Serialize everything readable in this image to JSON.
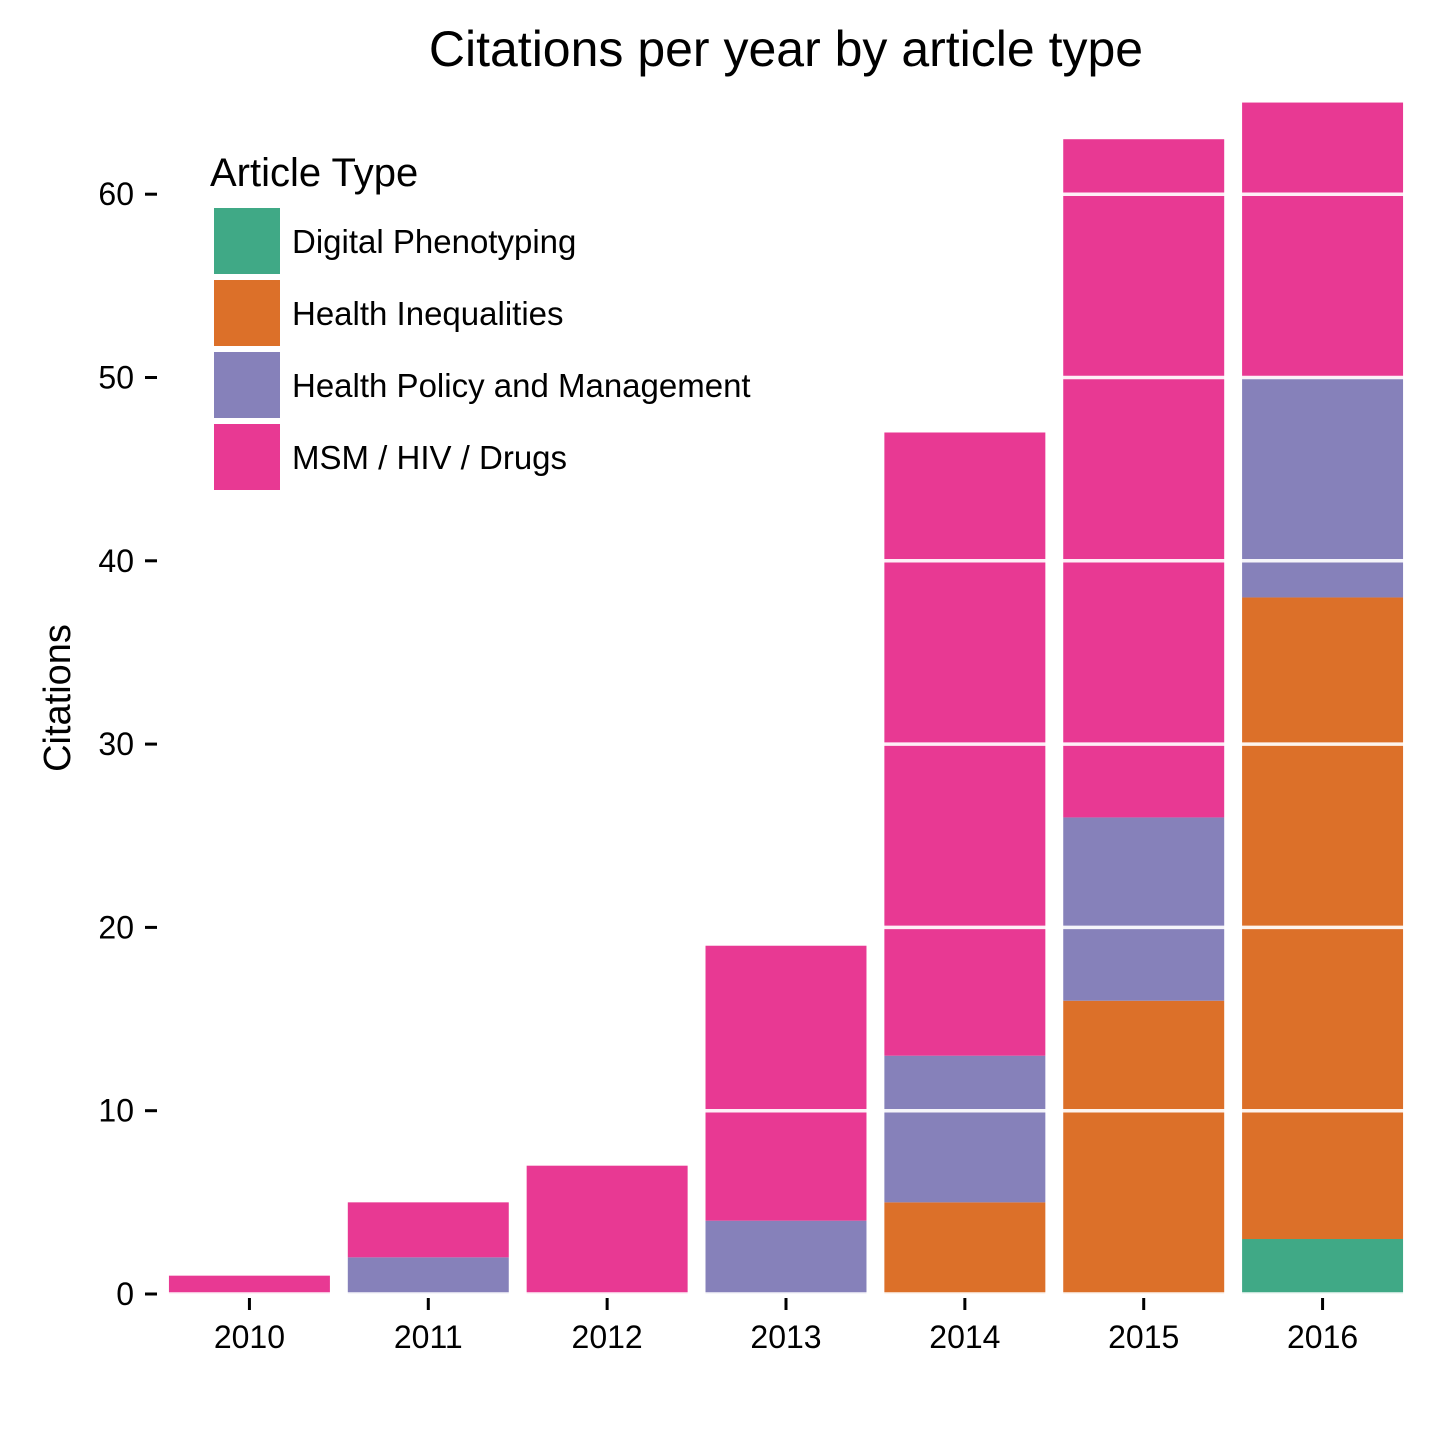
{
  "chart_data": {
    "type": "bar",
    "stacked": true,
    "title": "Citations per year by article type",
    "xlabel": "",
    "ylabel": "Citations",
    "categories": [
      "2010",
      "2011",
      "2012",
      "2013",
      "2014",
      "2015",
      "2016"
    ],
    "ylim": [
      0,
      65
    ],
    "yticks": [
      0,
      10,
      20,
      30,
      40,
      50,
      60
    ],
    "grid": "white lines drawn over bars",
    "legend": {
      "title": "Article Type",
      "position": "top-left"
    },
    "series": [
      {
        "name": "Digital Phenotyping",
        "color": "#40A986",
        "values": [
          0,
          0,
          0,
          0,
          0,
          0,
          3
        ]
      },
      {
        "name": "Health Inequalities",
        "color": "#DC7029",
        "values": [
          0,
          0,
          0,
          0,
          5,
          16,
          35
        ]
      },
      {
        "name": "Health Policy and Management",
        "color": "#8681BA",
        "values": [
          0,
          2,
          0,
          4,
          8,
          10,
          12
        ]
      },
      {
        "name": "MSM / HIV / Drugs",
        "color": "#E83993",
        "values": [
          1,
          3,
          7,
          15,
          34,
          37,
          15
        ]
      }
    ]
  }
}
